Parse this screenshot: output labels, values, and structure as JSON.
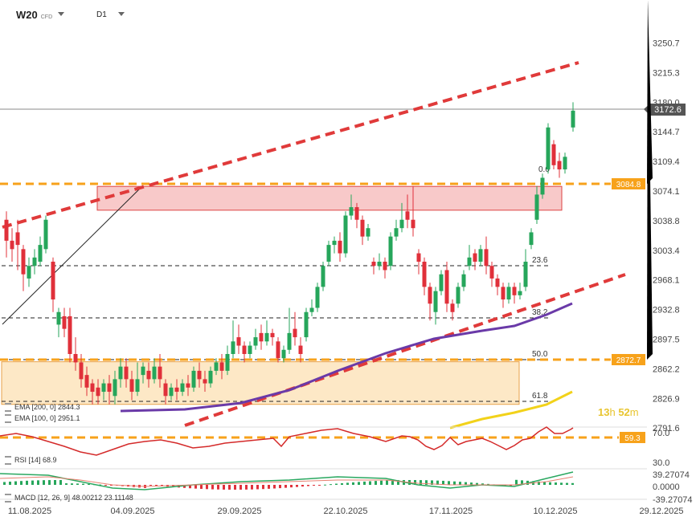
{
  "toolbar": {
    "symbol": "W20",
    "symbol_type": "CFD",
    "timeframe": "D1"
  },
  "price_axis": {
    "labels": [
      "3250.7",
      "3215.3",
      "3180.0",
      "3144.7",
      "3109.4",
      "3074.1",
      "3038.8",
      "3003.4",
      "2968.1",
      "2932.8",
      "2897.5",
      "2862.2",
      "2826.9",
      "2791.6"
    ],
    "current_price": "3172.6",
    "level_resistance": "3084.8",
    "level_support": "2872.7"
  },
  "fib_labels": [
    "0.0",
    "23.6",
    "38.2",
    "50.0",
    "61.8"
  ],
  "date_axis": {
    "labels": [
      "11.08.2025",
      "04.09.2025",
      "29.09.2025",
      "22.10.2025",
      "17.11.2025",
      "10.12.2025",
      "29.12.2025"
    ]
  },
  "indicators": {
    "ema200": "EMA [200, 0]  2844.3",
    "ema100": "EMA [100, 0]  2951.1",
    "rsi_label": "RSI [14]",
    "rsi_value": "68.9",
    "rsi_axis_top": "70.0",
    "rsi_axis_bottom": "30.0",
    "rsi_level": "59.3",
    "macd_label": "MACD [12, 26, 9]",
    "macd_values": "48.00212   23.11148",
    "macd_axis_top": "39.27074",
    "macd_axis_mid": "0.0000",
    "macd_axis_bottom": "-39.27074"
  },
  "countdown": {
    "hours": "13",
    "h_unit": "h",
    "minutes": "52",
    "m_unit": "m"
  },
  "colors": {
    "bull": "#26a65b",
    "bear": "#e0303a",
    "dash_orange": "#f7a21b",
    "dash_red": "#e03a3a",
    "ema_purple": "#6a3aa8",
    "ema_yellow": "#f2d21a",
    "zone_red": "#f8c9c9",
    "zone_yellow": "#fde8c6"
  }
}
